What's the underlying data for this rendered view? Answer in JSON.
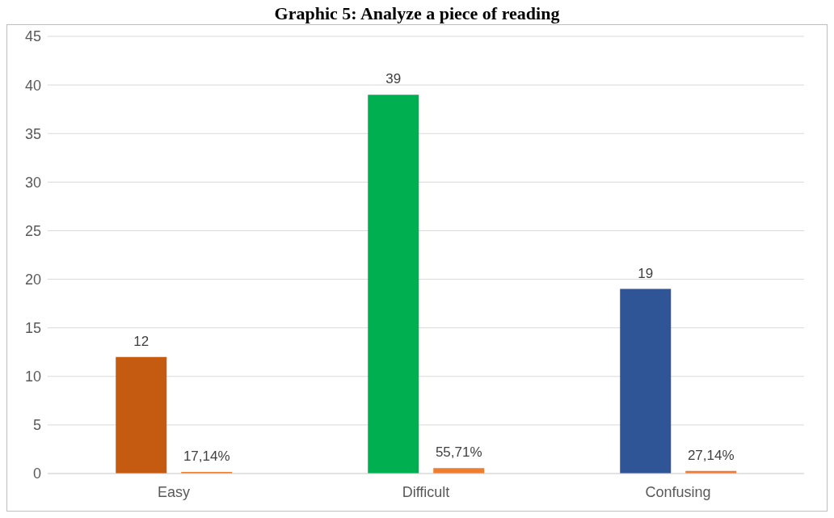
{
  "chart_data": {
    "type": "bar",
    "title": "Graphic 5: Analyze a piece of reading",
    "categories": [
      "Easy",
      "Difficult",
      "Confusing"
    ],
    "series": [
      {
        "colors": [
          "#c55a11",
          "#00b050",
          "#2f5597"
        ],
        "values": [
          12,
          39,
          19
        ],
        "value_labels": [
          "12",
          "39",
          "19"
        ]
      },
      {
        "color": "#ed7d31",
        "values": [
          0.1714,
          0.5571,
          0.2714
        ],
        "value_labels": [
          "17,14%",
          "55,71%",
          "27,14%"
        ]
      }
    ],
    "ylim": [
      0,
      45
    ],
    "yticks": [
      0,
      5,
      10,
      15,
      20,
      25,
      30,
      35,
      40,
      45
    ],
    "grid": "y",
    "legend": false
  }
}
